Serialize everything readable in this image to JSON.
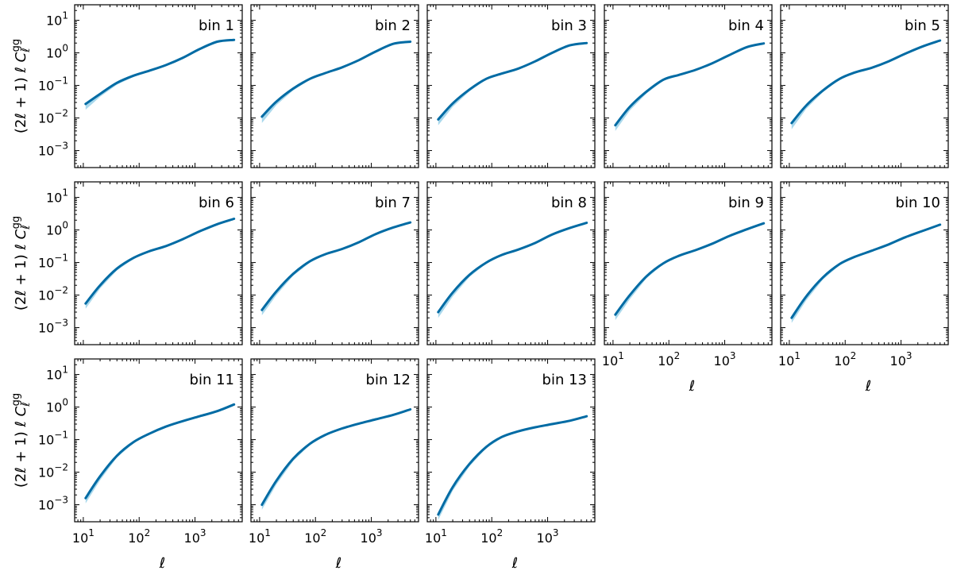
{
  "figure": {
    "ylabel": "(2ℓ + 1) ℓ C_ℓ^gg",
    "xlabel": "ℓ"
  },
  "chart_data": {
    "type": "line",
    "xscale": "log",
    "yscale": "log",
    "xlim": [
      7,
      7000
    ],
    "ylim": [
      0.0003,
      30
    ],
    "x_ticks": [
      {
        "value": 10,
        "label": "10^1"
      },
      {
        "value": 100,
        "label": "10^2"
      },
      {
        "value": 1000,
        "label": "10^3"
      }
    ],
    "y_ticks": [
      {
        "value": 0.001,
        "label": "10^-3"
      },
      {
        "value": 0.01,
        "label": "10^-2"
      },
      {
        "value": 0.1,
        "label": "10^-1"
      },
      {
        "value": 1,
        "label": "10^0"
      },
      {
        "value": 10,
        "label": "10^1"
      }
    ],
    "xlabel": "ℓ",
    "ylabel": "(2ℓ + 1) ℓ C_ℓ^gg",
    "grid": false,
    "line_color": "#006ba4",
    "band_color": "#a9d8ec",
    "shared_x": [
      11,
      20,
      40,
      80,
      150,
      300,
      600,
      1200,
      2500,
      5000
    ],
    "panels": [
      {
        "label": "bin 1",
        "y": [
          0.027,
          0.055,
          0.12,
          0.2,
          0.28,
          0.42,
          0.7,
          1.3,
          2.2,
          2.5
        ],
        "band_low": [
          0.018,
          0.045,
          0.105,
          0.185,
          0.265,
          0.405,
          0.68,
          1.27,
          2.16,
          2.46
        ]
      },
      {
        "label": "bin 2",
        "y": [
          0.011,
          0.032,
          0.08,
          0.16,
          0.24,
          0.36,
          0.6,
          1.1,
          1.9,
          2.2
        ],
        "band_low": [
          0.007,
          0.025,
          0.07,
          0.15,
          0.23,
          0.35,
          0.58,
          1.07,
          1.86,
          2.16
        ]
      },
      {
        "label": "bin 3",
        "y": [
          0.009,
          0.028,
          0.075,
          0.16,
          0.23,
          0.33,
          0.55,
          1.0,
          1.7,
          2.0
        ],
        "band_low": [
          0.006,
          0.022,
          0.066,
          0.15,
          0.22,
          0.32,
          0.53,
          0.98,
          1.67,
          1.96
        ]
      },
      {
        "label": "bin 4",
        "y": [
          0.006,
          0.022,
          0.065,
          0.15,
          0.21,
          0.3,
          0.48,
          0.85,
          1.5,
          1.95
        ],
        "band_low": [
          0.004,
          0.017,
          0.057,
          0.14,
          0.2,
          0.29,
          0.46,
          0.83,
          1.47,
          1.91
        ]
      },
      {
        "label": "bin 5",
        "y": [
          0.007,
          0.024,
          0.07,
          0.16,
          0.25,
          0.35,
          0.55,
          0.95,
          1.6,
          2.4
        ],
        "band_low": [
          0.0045,
          0.019,
          0.062,
          0.15,
          0.24,
          0.34,
          0.53,
          0.93,
          1.57,
          2.35
        ]
      },
      {
        "label": "bin 6",
        "y": [
          0.0055,
          0.02,
          0.065,
          0.14,
          0.22,
          0.32,
          0.52,
          0.9,
          1.5,
          2.2
        ],
        "band_low": [
          0.0038,
          0.016,
          0.057,
          0.13,
          0.21,
          0.31,
          0.5,
          0.88,
          1.47,
          2.15
        ]
      },
      {
        "label": "bin 7",
        "y": [
          0.0035,
          0.013,
          0.045,
          0.11,
          0.18,
          0.26,
          0.42,
          0.75,
          1.2,
          1.7
        ],
        "band_low": [
          0.0024,
          0.01,
          0.039,
          0.1,
          0.17,
          0.25,
          0.4,
          0.73,
          1.17,
          1.66
        ]
      },
      {
        "label": "bin 8",
        "y": [
          0.003,
          0.012,
          0.042,
          0.1,
          0.17,
          0.25,
          0.4,
          0.72,
          1.15,
          1.65
        ],
        "band_low": [
          0.002,
          0.009,
          0.036,
          0.093,
          0.16,
          0.24,
          0.38,
          0.7,
          1.12,
          1.61
        ]
      },
      {
        "label": "bin 9",
        "y": [
          0.0025,
          0.01,
          0.038,
          0.095,
          0.16,
          0.24,
          0.38,
          0.65,
          1.05,
          1.6
        ],
        "band_low": [
          0.0017,
          0.0075,
          0.033,
          0.088,
          0.15,
          0.23,
          0.36,
          0.63,
          1.02,
          1.56
        ]
      },
      {
        "label": "bin 10",
        "y": [
          0.002,
          0.009,
          0.035,
          0.09,
          0.15,
          0.23,
          0.36,
          0.6,
          0.95,
          1.45
        ],
        "band_low": [
          0.0014,
          0.0068,
          0.03,
          0.083,
          0.14,
          0.22,
          0.34,
          0.58,
          0.92,
          1.41
        ]
      },
      {
        "label": "bin 11",
        "y": [
          0.0016,
          0.0075,
          0.032,
          0.085,
          0.15,
          0.25,
          0.37,
          0.52,
          0.75,
          1.2
        ],
        "band_low": [
          0.0011,
          0.0057,
          0.028,
          0.078,
          0.14,
          0.24,
          0.35,
          0.5,
          0.73,
          1.17
        ]
      },
      {
        "label": "bin 12",
        "y": [
          0.001,
          0.0055,
          0.026,
          0.075,
          0.14,
          0.22,
          0.31,
          0.42,
          0.58,
          0.85
        ],
        "band_low": [
          0.0007,
          0.0042,
          0.022,
          0.069,
          0.13,
          0.21,
          0.3,
          0.41,
          0.56,
          0.82
        ]
      },
      {
        "label": "bin 13",
        "y": [
          0.0005,
          0.0035,
          0.018,
          0.06,
          0.12,
          0.18,
          0.24,
          0.3,
          0.38,
          0.52
        ],
        "band_low": [
          0.00034,
          0.0027,
          0.015,
          0.055,
          0.11,
          0.17,
          0.23,
          0.29,
          0.37,
          0.5
        ]
      }
    ]
  }
}
